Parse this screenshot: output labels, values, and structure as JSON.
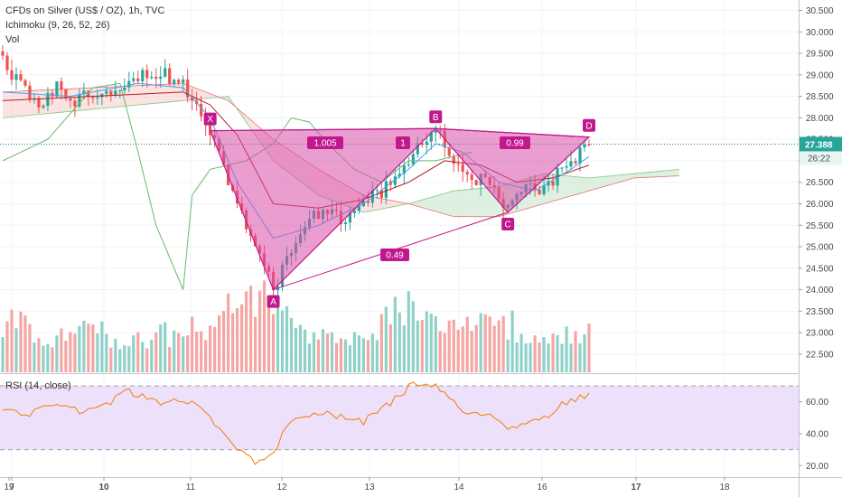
{
  "header": {
    "symbol_line": "CFDs on Silver (US$ / OZ), 1h, TVC",
    "indicator_line": "Ichimoku (9, 26, 52, 26)",
    "volume_line": "Vol",
    "rsi_label": "RSI (14, close)"
  },
  "price_badge": {
    "price": "27.388",
    "countdown": "26:22"
  },
  "colors": {
    "pattern_fill": "#d94fa8",
    "pattern_line": "#c2188d",
    "label_bg": "#c2188d",
    "candle_up": "#26a69a",
    "candle_down": "#ef5350",
    "vol_up": "#8fd1c9",
    "vol_down": "#f4a6a3",
    "rsi_line": "#f57c00",
    "rsi_band": "#ede0fb",
    "price_line": "#1e7e74",
    "badge_bg": "#26a69a"
  },
  "chart_data": {
    "type": "candlestick",
    "x_tick_labels": [
      "7",
      "10",
      "11",
      "12",
      "13",
      "14",
      "16",
      "17",
      "18",
      "19"
    ],
    "price_axis": {
      "ticks": [
        "30.500",
        "30.000",
        "29.500",
        "29.000",
        "28.500",
        "28.000",
        "27.500",
        "27.000",
        "26.500",
        "26.000",
        "25.500",
        "25.000",
        "24.500",
        "24.000",
        "23.500",
        "23.000",
        "22.500"
      ],
      "ylim": [
        22.4,
        30.6
      ]
    },
    "rsi_axis": {
      "ticks": [
        "60.00",
        "40.00",
        "20.00"
      ],
      "ylim": [
        15,
        75
      ],
      "upper_band": 70,
      "lower_band": 30
    },
    "pattern": {
      "points": [
        {
          "label": "X",
          "bar": 46,
          "price": 27.7
        },
        {
          "label": "A",
          "bar": 60,
          "price": 24.0
        },
        {
          "label": "B",
          "bar": 96,
          "price": 27.75
        },
        {
          "label": "C",
          "bar": 112,
          "price": 25.8
        },
        {
          "label": "D",
          "bar": 130,
          "price": 27.55
        }
      ],
      "ratios": [
        {
          "text": "1.005",
          "between": "X-B"
        },
        {
          "text": "1",
          "between": "X-B"
        },
        {
          "text": "0.99",
          "between": "B-D"
        },
        {
          "text": "0.49",
          "between": "A-C"
        }
      ]
    },
    "close_anchors": [
      [
        0,
        29.3
      ],
      [
        4,
        28.7
      ],
      [
        8,
        28.3
      ],
      [
        12,
        28.7
      ],
      [
        16,
        28.4
      ],
      [
        20,
        28.6
      ],
      [
        24,
        28.7
      ],
      [
        28,
        28.9
      ],
      [
        32,
        29.05
      ],
      [
        36,
        29.0
      ],
      [
        40,
        28.8
      ],
      [
        44,
        28.2
      ],
      [
        46,
        27.7
      ],
      [
        50,
        26.6
      ],
      [
        54,
        25.4
      ],
      [
        58,
        24.5
      ],
      [
        60,
        24.0
      ],
      [
        64,
        25.0
      ],
      [
        68,
        25.6
      ],
      [
        72,
        25.9
      ],
      [
        76,
        25.6
      ],
      [
        80,
        26.0
      ],
      [
        84,
        26.3
      ],
      [
        88,
        26.7
      ],
      [
        92,
        27.3
      ],
      [
        96,
        27.75
      ],
      [
        100,
        27.0
      ],
      [
        104,
        26.6
      ],
      [
        108,
        26.5
      ],
      [
        112,
        25.8
      ],
      [
        116,
        26.4
      ],
      [
        120,
        26.3
      ],
      [
        124,
        26.8
      ],
      [
        128,
        27.2
      ],
      [
        130,
        27.45
      ]
    ],
    "rsi_anchors": [
      [
        0,
        55
      ],
      [
        6,
        52
      ],
      [
        12,
        58
      ],
      [
        18,
        54
      ],
      [
        24,
        60
      ],
      [
        28,
        67
      ],
      [
        32,
        62
      ],
      [
        36,
        58
      ],
      [
        40,
        61
      ],
      [
        44,
        55
      ],
      [
        48,
        42
      ],
      [
        52,
        30
      ],
      [
        56,
        22
      ],
      [
        60,
        28
      ],
      [
        64,
        50
      ],
      [
        70,
        52
      ],
      [
        76,
        51
      ],
      [
        80,
        48
      ],
      [
        84,
        55
      ],
      [
        88,
        65
      ],
      [
        92,
        72
      ],
      [
        96,
        69
      ],
      [
        100,
        60
      ],
      [
        104,
        52
      ],
      [
        108,
        50
      ],
      [
        112,
        45
      ],
      [
        116,
        47
      ],
      [
        120,
        50
      ],
      [
        124,
        58
      ],
      [
        128,
        64
      ],
      [
        130,
        65
      ]
    ],
    "vol_anchors": [
      [
        0,
        0.7
      ],
      [
        10,
        0.5
      ],
      [
        20,
        0.55
      ],
      [
        30,
        0.45
      ],
      [
        40,
        0.55
      ],
      [
        46,
        0.6
      ],
      [
        50,
        0.9
      ],
      [
        54,
        0.85
      ],
      [
        58,
        1.0
      ],
      [
        62,
        0.8
      ],
      [
        66,
        0.5
      ],
      [
        70,
        0.45
      ],
      [
        76,
        0.4
      ],
      [
        82,
        0.55
      ],
      [
        88,
        0.85
      ],
      [
        92,
        0.8
      ],
      [
        96,
        0.6
      ],
      [
        100,
        0.6
      ],
      [
        106,
        0.65
      ],
      [
        110,
        0.75
      ],
      [
        116,
        0.55
      ],
      [
        124,
        0.55
      ],
      [
        130,
        0.55
      ]
    ],
    "ichimoku": {
      "senkou_a_anchors": [
        [
          0,
          28.0
        ],
        [
          20,
          28.2
        ],
        [
          40,
          28.4
        ],
        [
          50,
          28.5
        ],
        [
          60,
          27.0
        ],
        [
          70,
          26.2
        ],
        [
          80,
          25.8
        ],
        [
          90,
          26.0
        ],
        [
          100,
          26.3
        ],
        [
          110,
          26.4
        ],
        [
          120,
          26.7
        ],
        [
          130,
          26.6
        ],
        [
          140,
          26.7
        ],
        [
          150,
          26.8
        ]
      ],
      "senkou_b_anchors": [
        [
          0,
          28.6
        ],
        [
          20,
          28.7
        ],
        [
          40,
          28.8
        ],
        [
          50,
          28.4
        ],
        [
          60,
          27.5
        ],
        [
          70,
          26.8
        ],
        [
          80,
          26.2
        ],
        [
          90,
          26.0
        ],
        [
          100,
          25.7
        ],
        [
          110,
          25.7
        ],
        [
          120,
          26.0
        ],
        [
          130,
          26.3
        ],
        [
          140,
          26.6
        ],
        [
          150,
          26.65
        ]
      ],
      "tenkan_anchors": [
        [
          0,
          28.6
        ],
        [
          15,
          28.5
        ],
        [
          30,
          28.8
        ],
        [
          40,
          28.7
        ],
        [
          46,
          28.0
        ],
        [
          52,
          26.5
        ],
        [
          60,
          25.2
        ],
        [
          70,
          25.5
        ],
        [
          80,
          26.0
        ],
        [
          90,
          26.8
        ],
        [
          96,
          27.4
        ],
        [
          102,
          27.2
        ],
        [
          110,
          26.5
        ],
        [
          118,
          26.3
        ],
        [
          126,
          26.8
        ],
        [
          130,
          27.1
        ]
      ],
      "kijun_anchors": [
        [
          0,
          28.4
        ],
        [
          20,
          28.5
        ],
        [
          40,
          28.6
        ],
        [
          46,
          28.3
        ],
        [
          52,
          27.6
        ],
        [
          60,
          26.0
        ],
        [
          70,
          25.9
        ],
        [
          80,
          26.1
        ],
        [
          90,
          26.5
        ],
        [
          98,
          27.0
        ],
        [
          106,
          26.9
        ],
        [
          114,
          26.5
        ],
        [
          122,
          26.6
        ],
        [
          130,
          26.9
        ]
      ],
      "chikou_anchors": [
        [
          0,
          27.0
        ],
        [
          10,
          27.5
        ],
        [
          20,
          28.7
        ],
        [
          26,
          28.8
        ],
        [
          30,
          27.2
        ],
        [
          34,
          25.5
        ],
        [
          38,
          24.5
        ],
        [
          40,
          24.0
        ],
        [
          42,
          26.2
        ],
        [
          46,
          26.8
        ],
        [
          54,
          27.0
        ],
        [
          60,
          27.4
        ],
        [
          64,
          28.0
        ],
        [
          68,
          27.9
        ],
        [
          72,
          27.4
        ],
        [
          78,
          26.8
        ],
        [
          84,
          26.5
        ],
        [
          90,
          27.0
        ],
        [
          96,
          27.0
        ],
        [
          104,
          27.2
        ]
      ]
    }
  }
}
